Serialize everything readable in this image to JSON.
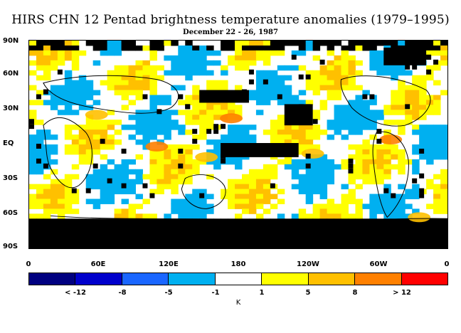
{
  "header": {
    "title": "HIRS CHN 12 Pentad brightness temperature anomalies (1979–1995)",
    "subtitle": "December 22 - 26, 1987"
  },
  "map": {
    "lat_labels": [
      "90N",
      "60N",
      "30N",
      "EQ",
      "30S",
      "60S",
      "90S"
    ],
    "lon_labels": [
      "0",
      "60E",
      "120E",
      "180",
      "120W",
      "60W",
      "0"
    ]
  },
  "colorbar": {
    "colors": [
      "#000080",
      "#0000cc",
      "#1a66ff",
      "#00b0f0",
      "#ffffff",
      "#ffff00",
      "#ffc000",
      "#ff8000",
      "#ff0000"
    ],
    "labels": [
      "< -12",
      "-8",
      "-5",
      "-1",
      "1",
      "5",
      "8",
      "> 12"
    ],
    "unit": "K"
  }
}
